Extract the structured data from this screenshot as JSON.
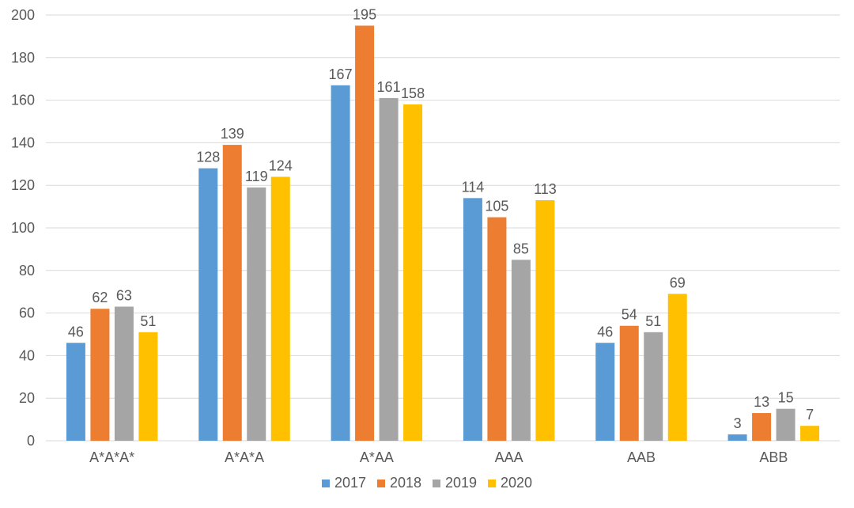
{
  "chart_data": {
    "type": "bar",
    "categories": [
      "A*A*A*",
      "A*A*A",
      "A*AA",
      "AAA",
      "AAB",
      "ABB"
    ],
    "series": [
      {
        "name": "2017",
        "color": "#5b9bd5",
        "values": [
          46,
          128,
          167,
          114,
          46,
          3
        ]
      },
      {
        "name": "2018",
        "color": "#ed7d31",
        "values": [
          62,
          139,
          195,
          105,
          54,
          13
        ]
      },
      {
        "name": "2019",
        "color": "#a5a5a5",
        "values": [
          63,
          119,
          161,
          85,
          51,
          15
        ]
      },
      {
        "name": "2020",
        "color": "#ffc000",
        "values": [
          51,
          124,
          158,
          113,
          69,
          7
        ]
      }
    ],
    "ylim": [
      0,
      200
    ],
    "yticks": [
      "0",
      "20",
      "40",
      "60",
      "80",
      "100",
      "120",
      "140",
      "160",
      "180",
      "200"
    ],
    "grid": true,
    "legend": "bottom",
    "data_labels": true
  }
}
